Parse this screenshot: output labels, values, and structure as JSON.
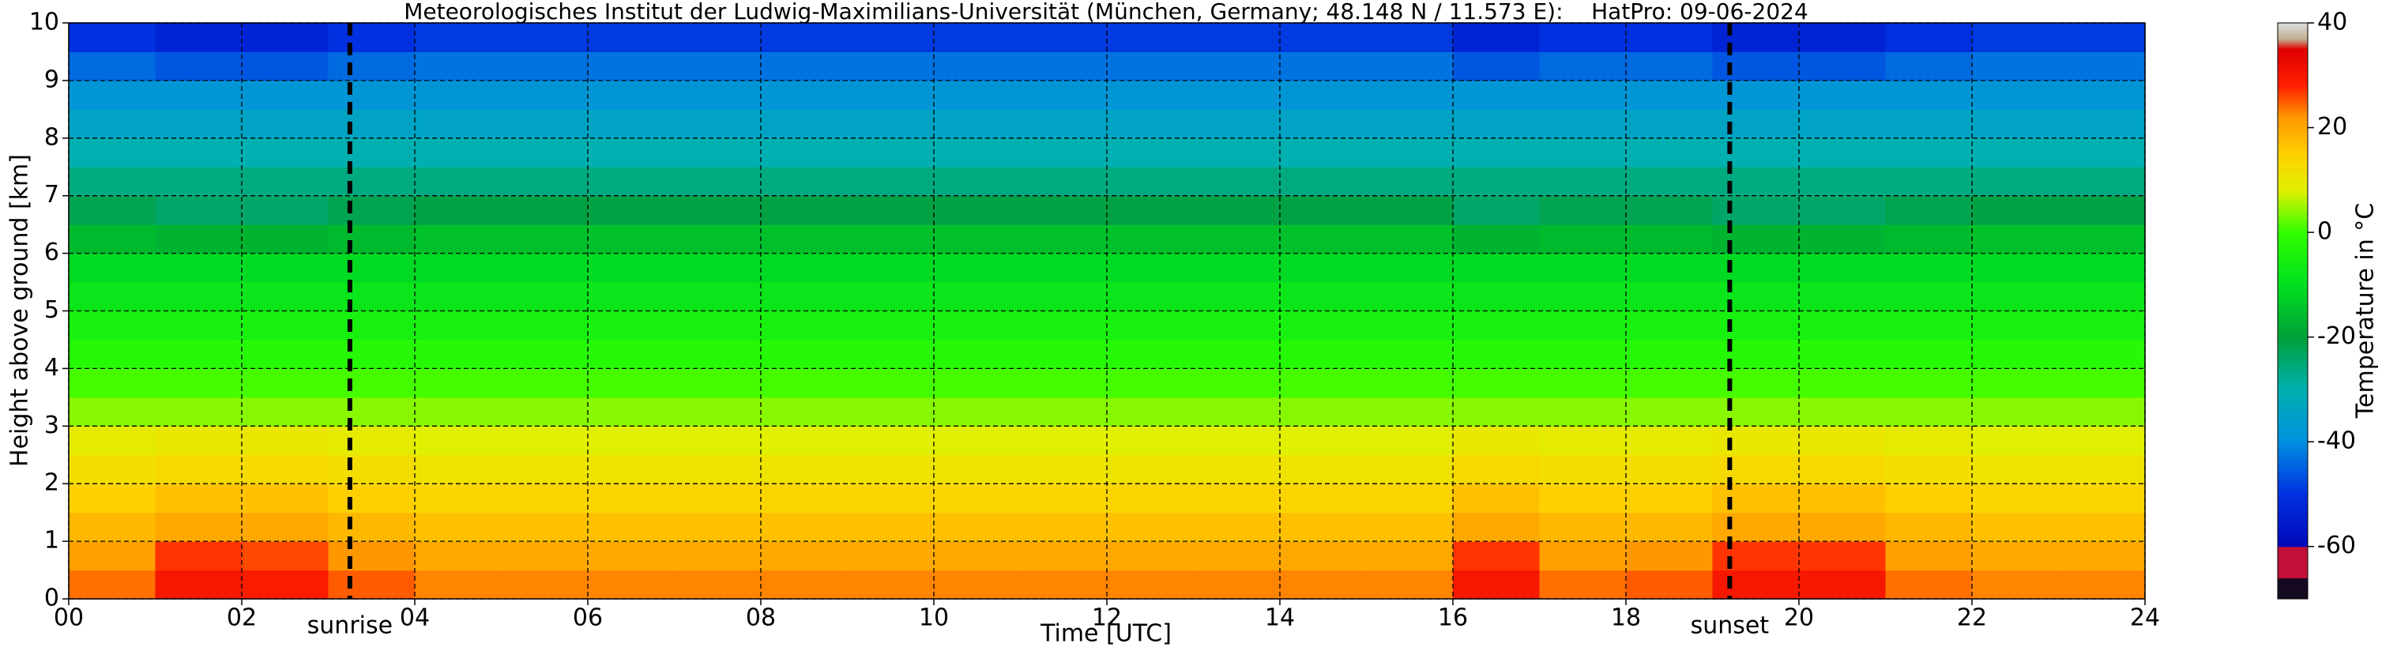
{
  "chart_data": {
    "type": "heatmap",
    "title": "Meteorologisches Institut der Ludwig-Maximilians-Universität (München, Germany; 48.148 N / 11.573 E):    HatPro: 09-06-2024",
    "x_label": "Time [UTC]",
    "y_label": "Height above ground [km]",
    "colorbar_label": "Temperature in °C",
    "x_bins": [
      0,
      1,
      2,
      3,
      4,
      5,
      6,
      7,
      8,
      9,
      10,
      11,
      12,
      13,
      14,
      15,
      16,
      17,
      18,
      19,
      20,
      21,
      22,
      23,
      24
    ],
    "y_bins": [
      0,
      0.5,
      1,
      1.5,
      2,
      2.5,
      3,
      3.5,
      4,
      4.5,
      5,
      5.5,
      6,
      6.5,
      7,
      7.5,
      8,
      8.5,
      9,
      9.5,
      10
    ],
    "z": [
      [
        24,
        30,
        29,
        25,
        23,
        23,
        23,
        23,
        23,
        23,
        23,
        23,
        23,
        23,
        23,
        23,
        30,
        24,
        25,
        30,
        30,
        24,
        23,
        23
      ],
      [
        21,
        27,
        26,
        22,
        20,
        20,
        20,
        20,
        20,
        20,
        20,
        20,
        20,
        20,
        20,
        20,
        27,
        21,
        22,
        27,
        27,
        21,
        20,
        20
      ],
      [
        18,
        20,
        20,
        18,
        17,
        17,
        17,
        17,
        17,
        17,
        17,
        17,
        17,
        17,
        17,
        17,
        20,
        18,
        18,
        20,
        20,
        18,
        17,
        17
      ],
      [
        15,
        17,
        17,
        15,
        14,
        14,
        14,
        14,
        14,
        14,
        14,
        14,
        14,
        14,
        14,
        14,
        17,
        15,
        15,
        17,
        17,
        15,
        14,
        14
      ],
      [
        12,
        13,
        13,
        12,
        11,
        11,
        11,
        11,
        11,
        11,
        11,
        11,
        11,
        11,
        11,
        11,
        13,
        12,
        12,
        13,
        13,
        12,
        11,
        11
      ],
      [
        9,
        10,
        10,
        9,
        8,
        8,
        8,
        8,
        8,
        8,
        8,
        8,
        8,
        8,
        8,
        8,
        10,
        9,
        9,
        10,
        10,
        9,
        8,
        8
      ],
      [
        4,
        4,
        4,
        4,
        4,
        4,
        4,
        4,
        4,
        4,
        4,
        4,
        4,
        4,
        4,
        4,
        4,
        4,
        4,
        4,
        4,
        4,
        4,
        4
      ],
      [
        1,
        1,
        1,
        1,
        1,
        1,
        1,
        1,
        1,
        1,
        1,
        1,
        1,
        1,
        1,
        1,
        1,
        1,
        1,
        1,
        1,
        1,
        1,
        1
      ],
      [
        -2,
        -2,
        -2,
        -2,
        -2,
        -2,
        -2,
        -2,
        -2,
        -2,
        -2,
        -2,
        -2,
        -2,
        -2,
        -2,
        -2,
        -2,
        -2,
        -2,
        -2,
        -2,
        -2,
        -2
      ],
      [
        -5,
        -5,
        -5,
        -5,
        -5,
        -5,
        -5,
        -5,
        -5,
        -5,
        -5,
        -5,
        -5,
        -5,
        -5,
        -5,
        -5,
        -5,
        -5,
        -5,
        -5,
        -5,
        -5,
        -5
      ],
      [
        -8,
        -8,
        -8,
        -8,
        -8,
        -8,
        -8,
        -8,
        -8,
        -8,
        -8,
        -8,
        -8,
        -8,
        -8,
        -8,
        -8,
        -8,
        -8,
        -8,
        -8,
        -8,
        -8,
        -8
      ],
      [
        -11,
        -11,
        -11,
        -11,
        -11,
        -11,
        -11,
        -11,
        -11,
        -11,
        -11,
        -11,
        -11,
        -11,
        -11,
        -11,
        -11,
        -11,
        -11,
        -11,
        -11,
        -11,
        -11,
        -11
      ],
      [
        -16,
        -17,
        -17,
        -16,
        -15,
        -15,
        -15,
        -15,
        -15,
        -15,
        -15,
        -15,
        -15,
        -15,
        -15,
        -15,
        -17,
        -16,
        -16,
        -17,
        -17,
        -16,
        -15,
        -15
      ],
      [
        -22,
        -24,
        -24,
        -22,
        -21,
        -21,
        -21,
        -21,
        -21,
        -21,
        -21,
        -21,
        -21,
        -21,
        -21,
        -21,
        -24,
        -22,
        -22,
        -24,
        -24,
        -22,
        -21,
        -21
      ],
      [
        -26,
        -26,
        -26,
        -26,
        -26,
        -26,
        -26,
        -26,
        -26,
        -26,
        -26,
        -26,
        -26,
        -26,
        -26,
        -26,
        -26,
        -26,
        -26,
        -26,
        -26,
        -26,
        -26,
        -26
      ],
      [
        -30,
        -30,
        -30,
        -30,
        -30,
        -30,
        -30,
        -30,
        -30,
        -30,
        -30,
        -30,
        -30,
        -30,
        -30,
        -30,
        -30,
        -30,
        -30,
        -30,
        -30,
        -30,
        -30,
        -30
      ],
      [
        -34,
        -34,
        -34,
        -34,
        -34,
        -34,
        -34,
        -34,
        -34,
        -34,
        -34,
        -34,
        -34,
        -34,
        -34,
        -34,
        -34,
        -34,
        -34,
        -34,
        -34,
        -34,
        -34,
        -34
      ],
      [
        -38,
        -38,
        -38,
        -38,
        -38,
        -38,
        -38,
        -38,
        -38,
        -38,
        -38,
        -38,
        -38,
        -38,
        -38,
        -38,
        -38,
        -38,
        -38,
        -38,
        -38,
        -38,
        -38,
        -38
      ],
      [
        -44,
        -46,
        -46,
        -44,
        -43,
        -43,
        -43,
        -43,
        -43,
        -43,
        -43,
        -43,
        -43,
        -43,
        -43,
        -43,
        -46,
        -44,
        -44,
        -46,
        -46,
        -44,
        -43,
        -43
      ],
      [
        -50,
        -53,
        -53,
        -50,
        -49,
        -49,
        -49,
        -49,
        -49,
        -49,
        -49,
        -49,
        -49,
        -49,
        -49,
        -49,
        -53,
        -50,
        -50,
        -53,
        -53,
        -50,
        -49,
        -49
      ]
    ],
    "xlim": [
      0,
      24
    ],
    "ylim": [
      0,
      10
    ],
    "xticks": [
      {
        "value": 0,
        "label": "00"
      },
      {
        "value": 2,
        "label": "02"
      },
      {
        "value": 4,
        "label": "04"
      },
      {
        "value": 6,
        "label": "06"
      },
      {
        "value": 8,
        "label": "08"
      },
      {
        "value": 10,
        "label": "10"
      },
      {
        "value": 12,
        "label": "12"
      },
      {
        "value": 14,
        "label": "14"
      },
      {
        "value": 16,
        "label": "16"
      },
      {
        "value": 18,
        "label": "18"
      },
      {
        "value": 20,
        "label": "20"
      },
      {
        "value": 22,
        "label": "22"
      },
      {
        "value": 24,
        "label": "24"
      }
    ],
    "yticks": [
      0,
      1,
      2,
      3,
      4,
      5,
      6,
      7,
      8,
      9,
      10
    ],
    "clim": [
      -70,
      40
    ],
    "cticks": [
      -60,
      -40,
      -20,
      0,
      20,
      40
    ],
    "colorscale": [
      [
        -70,
        "#160a22"
      ],
      [
        -66,
        "#160a22"
      ],
      [
        -65.9,
        "#c01038"
      ],
      [
        -60.1,
        "#c01038"
      ],
      [
        -60,
        "#0008b8"
      ],
      [
        -50,
        "#0030e0"
      ],
      [
        -40,
        "#0090e0"
      ],
      [
        -30,
        "#00b0b0"
      ],
      [
        -20,
        "#00a038"
      ],
      [
        -10,
        "#00e020"
      ],
      [
        0,
        "#30ff00"
      ],
      [
        8,
        "#e0f000"
      ],
      [
        15,
        "#ffd000"
      ],
      [
        22,
        "#ff9800"
      ],
      [
        28,
        "#ff2000"
      ],
      [
        35,
        "#e00000"
      ],
      [
        37,
        "#c0b090"
      ],
      [
        40,
        "#dcdcdc"
      ]
    ],
    "grid": true,
    "annotations": [
      {
        "text": "sunrise",
        "x": 3.25
      },
      {
        "text": "sunset",
        "x": 19.2
      }
    ]
  }
}
